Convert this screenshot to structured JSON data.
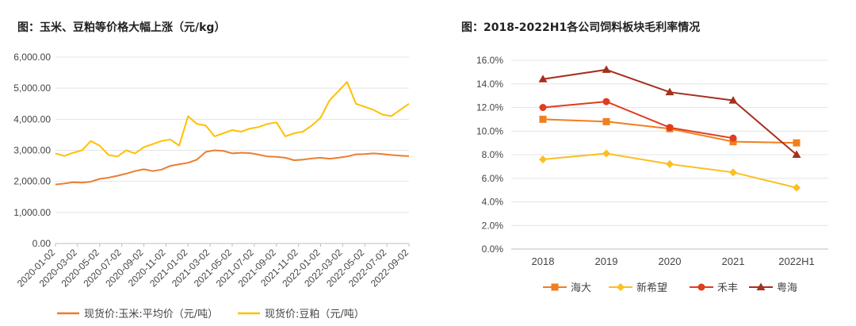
{
  "chart_data": [
    {
      "type": "line",
      "title": "图：玉米、豆粕等价格大幅上涨（元/kg）",
      "ylim": [
        0,
        6000
      ],
      "yticks": [
        "0.00",
        "1,000.00",
        "2,000.00",
        "3,000.00",
        "4,000.00",
        "5,000.00",
        "6,000.00"
      ],
      "xticks": [
        "2020-01-02",
        "2020-03-02",
        "2020-05-02",
        "2020-07-02",
        "2020-09-02",
        "2020-11-02",
        "2021-01-02",
        "2021-03-02",
        "2021-05-02",
        "2021-07-02",
        "2021-09-02",
        "2021-11-02",
        "2022-01-02",
        "2022-03-02",
        "2022-05-02",
        "2022-07-02",
        "2022-09-02"
      ],
      "legend_position": "bottom",
      "series": [
        {
          "name": "现货价:玉米:平均价（元/吨）",
          "color": "#ED7D31",
          "values": [
            1900,
            1930,
            1970,
            1960,
            1990,
            2080,
            2120,
            2180,
            2250,
            2330,
            2390,
            2330,
            2380,
            2500,
            2550,
            2600,
            2700,
            2950,
            3000,
            2980,
            2900,
            2920,
            2910,
            2860,
            2800,
            2790,
            2760,
            2680,
            2700,
            2740,
            2760,
            2730,
            2760,
            2800,
            2870,
            2880,
            2900,
            2880,
            2850,
            2830,
            2810
          ]
        },
        {
          "name": "现货价:豆粕（元/吨）",
          "color": "#FFC000",
          "values": [
            2900,
            2820,
            2920,
            3000,
            3300,
            3150,
            2850,
            2800,
            3000,
            2900,
            3100,
            3200,
            3300,
            3350,
            3150,
            4100,
            3850,
            3800,
            3450,
            3550,
            3650,
            3600,
            3700,
            3750,
            3850,
            3900,
            3450,
            3550,
            3600,
            3800,
            4050,
            4600,
            4900,
            5200,
            4500,
            4400,
            4300,
            4150,
            4100,
            4300,
            4500
          ]
        }
      ]
    },
    {
      "type": "line",
      "title": "图：2018-2022H1各公司饲料板块毛利率情况",
      "categories": [
        "2018",
        "2019",
        "2020",
        "2021",
        "2022H1"
      ],
      "ylim": [
        0,
        16
      ],
      "yticks": [
        "0.0%",
        "2.0%",
        "4.0%",
        "6.0%",
        "8.0%",
        "10.0%",
        "12.0%",
        "14.0%",
        "16.0%"
      ],
      "legend_position": "bottom",
      "series": [
        {
          "name": "海大",
          "color": "#F07F1E",
          "marker": "square",
          "values": [
            11.0,
            10.8,
            10.2,
            9.1,
            9.0
          ]
        },
        {
          "name": "新希望",
          "color": "#FBBF24",
          "marker": "diamond",
          "values": [
            7.6,
            8.1,
            7.2,
            6.5,
            5.2
          ]
        },
        {
          "name": "禾丰",
          "color": "#E03C1E",
          "marker": "circle",
          "values": [
            12.0,
            12.5,
            10.3,
            9.4,
            null
          ]
        },
        {
          "name": "粤海",
          "color": "#A4301E",
          "marker": "triangle",
          "values": [
            14.4,
            15.2,
            13.3,
            12.6,
            8.0
          ]
        }
      ]
    }
  ]
}
